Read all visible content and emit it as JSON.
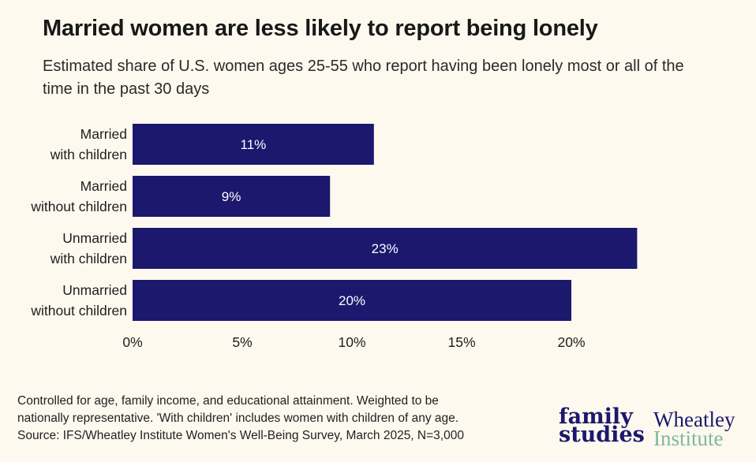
{
  "title": "Married women are less likely to report being lonely",
  "subtitle": "Estimated share of U.S. women ages 25-55 who report having been lonely most or all of the time in the past 30 days",
  "colors": {
    "bar": "#1c186e",
    "bar_text": "#ffffff",
    "background": "#fdf9ee",
    "logo_family_studies": "#1c186e",
    "logo_wheatley": "#1c186e",
    "logo_institute": "#7fb8a0"
  },
  "chart_data": {
    "type": "bar",
    "orientation": "horizontal",
    "categories": [
      [
        "Married",
        "with children"
      ],
      [
        "Married",
        "without children"
      ],
      [
        "Unmarried",
        "with children"
      ],
      [
        "Unmarried",
        "without children"
      ]
    ],
    "values": [
      11,
      9,
      23,
      20
    ],
    "value_labels": [
      "11%",
      "9%",
      "23%",
      "20%"
    ],
    "xlim": [
      0,
      23
    ],
    "xticks": [
      0,
      5,
      10,
      15,
      20
    ],
    "xtick_labels": [
      "0%",
      "5%",
      "10%",
      "15%",
      "20%"
    ],
    "grid": false,
    "legend": "none"
  },
  "footnote": [
    "Controlled for age, family income, and educational attainment. Weighted to be",
    "nationally representative. 'With children' includes women with children of any age.",
    "Source: IFS/Wheatley Institute Women's Well-Being Survey, March 2025, N=3,000"
  ],
  "logos": {
    "family_studies": [
      "family",
      "studies"
    ],
    "wheatley": [
      "Wheatley",
      "Institute"
    ]
  }
}
